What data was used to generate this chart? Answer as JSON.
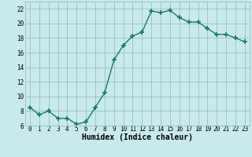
{
  "x": [
    0,
    1,
    2,
    3,
    4,
    5,
    6,
    7,
    8,
    9,
    10,
    11,
    12,
    13,
    14,
    15,
    16,
    17,
    18,
    19,
    20,
    21,
    22,
    23
  ],
  "y": [
    8.5,
    7.5,
    8.0,
    7.0,
    7.0,
    6.2,
    6.5,
    8.5,
    10.5,
    15.0,
    17.0,
    18.3,
    18.8,
    21.7,
    21.5,
    21.8,
    20.8,
    20.2,
    20.2,
    19.3,
    18.5,
    18.5,
    18.0,
    17.5
  ],
  "line_color": "#1a7a6a",
  "marker": "+",
  "marker_size": 4,
  "marker_lw": 1.2,
  "bg_color": "#c8eaea",
  "grid_color": "#9bbfbf",
  "xlabel": "Humidex (Indice chaleur)",
  "ylabel": "",
  "xlim": [
    -0.5,
    23.5
  ],
  "ylim": [
    6,
    23
  ],
  "yticks": [
    6,
    8,
    10,
    12,
    14,
    16,
    18,
    20,
    22
  ],
  "xticks": [
    0,
    1,
    2,
    3,
    4,
    5,
    6,
    7,
    8,
    9,
    10,
    11,
    12,
    13,
    14,
    15,
    16,
    17,
    18,
    19,
    20,
    21,
    22,
    23
  ],
  "tick_label_fontsize": 5.5,
  "xlabel_fontsize": 7.0,
  "line_width": 1.0
}
